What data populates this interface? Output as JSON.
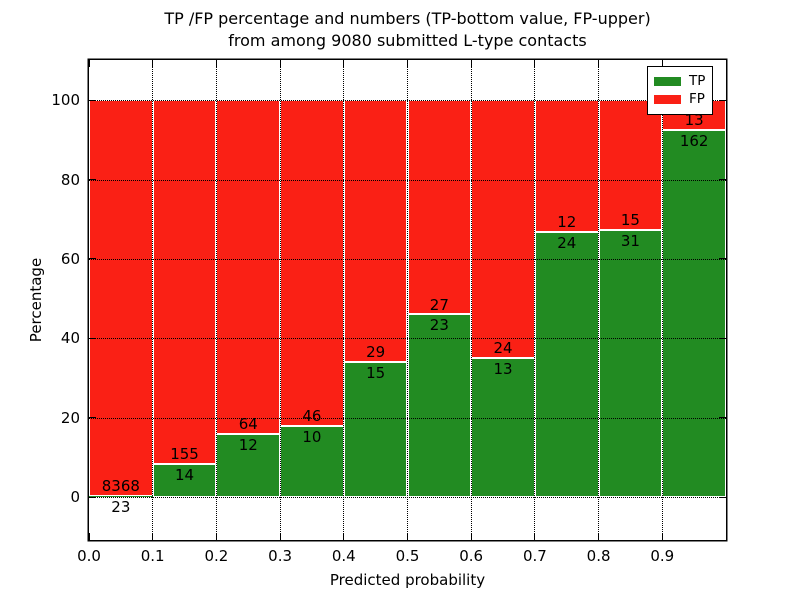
{
  "chart_data": {
    "type": "bar",
    "stacked": true,
    "normalized_to_percent": true,
    "title_line1": "TP /FP percentage and numbers (TP-bottom value, FP-upper)",
    "title_line2": "from among 9080 submitted L-type contacts",
    "xlabel": "Predicted probability",
    "ylabel": "Percentage",
    "total_submitted": 9080,
    "x_tick_labels": [
      "0.0",
      "0.1",
      "0.2",
      "0.3",
      "0.4",
      "0.5",
      "0.6",
      "0.7",
      "0.8",
      "0.9"
    ],
    "y_ticks": [
      0,
      20,
      40,
      60,
      80,
      100
    ],
    "ylim": [
      -10.8,
      110.1
    ],
    "xlim": [
      0.0,
      1.0
    ],
    "grid": {
      "style": "dotted",
      "horizontal": true,
      "vertical": true
    },
    "legend_position": "upper right",
    "legend": [
      {
        "name": "tp",
        "label": "TP",
        "color": "#228b22"
      },
      {
        "name": "fp",
        "label": "FP",
        "color": "#fa2015"
      }
    ],
    "bins": [
      {
        "range": "0.0-0.1",
        "tp": 23,
        "fp": 8368,
        "tp_pct": 0.27
      },
      {
        "range": "0.1-0.2",
        "tp": 14,
        "fp": 155,
        "tp_pct": 8.28
      },
      {
        "range": "0.2-0.3",
        "tp": 12,
        "fp": 64,
        "tp_pct": 15.79
      },
      {
        "range": "0.3-0.4",
        "tp": 10,
        "fp": 46,
        "tp_pct": 17.86
      },
      {
        "range": "0.4-0.5",
        "tp": 15,
        "fp": 29,
        "tp_pct": 34.09
      },
      {
        "range": "0.5-0.6",
        "tp": 23,
        "fp": 27,
        "tp_pct": 46.0
      },
      {
        "range": "0.6-0.7",
        "tp": 13,
        "fp": 24,
        "tp_pct": 35.14
      },
      {
        "range": "0.7-0.8",
        "tp": 24,
        "fp": 12,
        "tp_pct": 66.67
      },
      {
        "range": "0.8-0.9",
        "tp": 31,
        "fp": 15,
        "tp_pct": 67.39
      },
      {
        "range": "0.9-1.0",
        "tp": 162,
        "fp": 13,
        "tp_pct": 92.57
      }
    ]
  }
}
